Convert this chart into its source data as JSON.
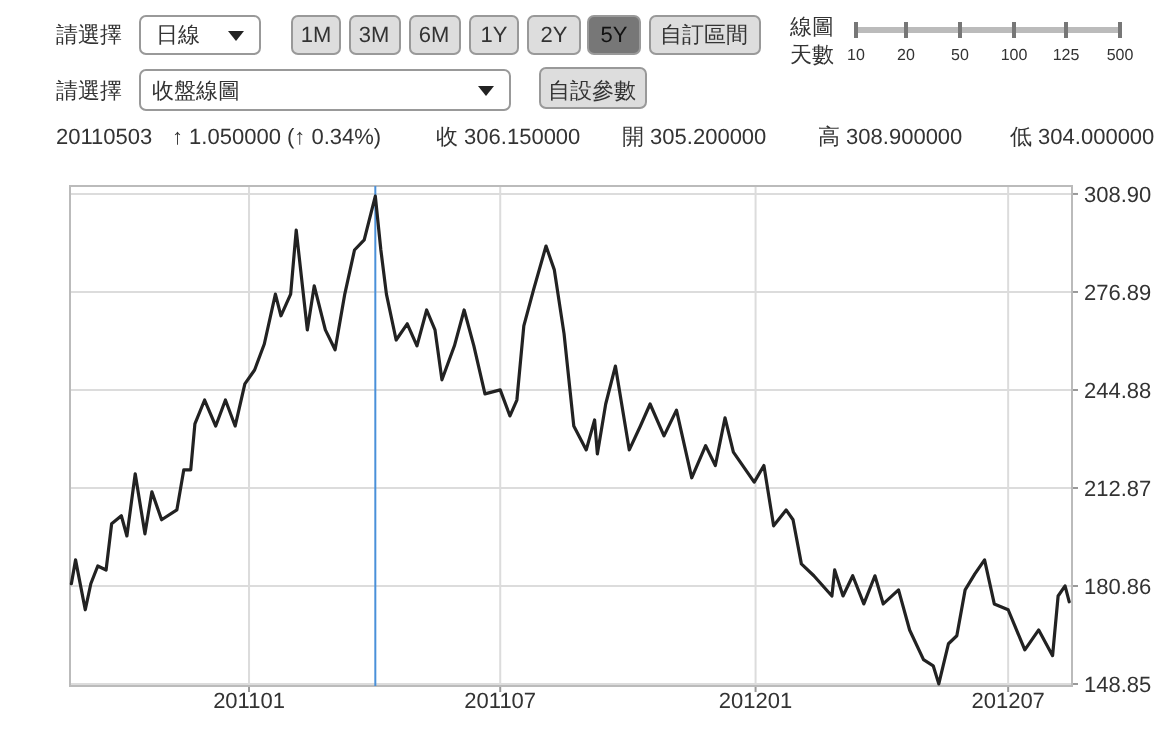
{
  "chart_data": {
    "type": "line",
    "annotations": [
      "請選擇",
      "日線",
      "1M",
      "3M",
      "6M",
      "1Y",
      "2Y",
      "5Y",
      "自訂區間",
      "線圖天數",
      "10",
      "20",
      "50",
      "100",
      "125",
      "500",
      "請選擇",
      "收盤線圖",
      "自設參數",
      "20110503",
      "↑ 1.050000 (↑ 0.34%)",
      "收 306.150000",
      "開 305.200000",
      "高 308.900000",
      "低 304.000000"
    ],
    "x": [
      "2010-08-26",
      "2010-08-29",
      "2010-09-05",
      "2010-09-09",
      "2010-09-14",
      "2010-09-20",
      "2010-09-24",
      "2010-10-01",
      "2010-10-05",
      "2010-10-11",
      "2010-10-18",
      "2010-10-23",
      "2010-10-30",
      "2010-11-10",
      "2010-11-15",
      "2010-11-20",
      "2010-11-23",
      "2010-11-30",
      "2010-12-08",
      "2010-12-15",
      "2010-12-22",
      "2010-12-29",
      "2011-01-05",
      "2011-01-12",
      "2011-01-20",
      "2011-01-24",
      "2011-01-31",
      "2011-02-04",
      "2011-02-12",
      "2011-02-17",
      "2011-02-25",
      "2011-03-04",
      "2011-03-11",
      "2011-03-18",
      "2011-03-25",
      "2011-04-02",
      "2011-04-06",
      "2011-04-10",
      "2011-04-17",
      "2011-04-25",
      "2011-05-02",
      "2011-05-09",
      "2011-05-15",
      "2011-05-20",
      "2011-05-29",
      "2011-06-05",
      "2011-06-12",
      "2011-06-20",
      "2011-07-01",
      "2011-07-08",
      "2011-07-13",
      "2011-07-18",
      "2011-07-25",
      "2011-08-03",
      "2011-08-09",
      "2011-08-16",
      "2011-08-23",
      "2011-09-01",
      "2011-09-07",
      "2011-09-09",
      "2011-09-15",
      "2011-09-22",
      "2011-10-02",
      "2011-10-10",
      "2011-10-17",
      "2011-10-27",
      "2011-11-05",
      "2011-11-16",
      "2011-11-26",
      "2011-12-03",
      "2011-12-10",
      "2011-12-16",
      "2011-12-31",
      "2012-01-07",
      "2012-01-14",
      "2012-01-23",
      "2012-01-28",
      "2012-02-03",
      "2012-02-12",
      "2012-02-25",
      "2012-02-27",
      "2012-03-04",
      "2012-03-11",
      "2012-03-19",
      "2012-03-27",
      "2012-04-02",
      "2012-04-13",
      "2012-04-21",
      "2012-05-01",
      "2012-05-08",
      "2012-05-12",
      "2012-05-19",
      "2012-05-25",
      "2012-05-31",
      "2012-06-07",
      "2012-06-14",
      "2012-06-21",
      "2012-07-01",
      "2012-07-13",
      "2012-07-23",
      "2012-08-02",
      "2012-08-06",
      "2012-08-11",
      "2012-08-14"
    ],
    "series": [
      {
        "color": "#222222",
        "values": [
          181.6,
          189.4,
          173.1,
          181.6,
          187.4,
          186.1,
          201.2,
          203.8,
          197.2,
          217.5,
          197.9,
          211.6,
          202.5,
          205.7,
          218.8,
          218.8,
          233.8,
          241.6,
          233.1,
          241.6,
          233.1,
          246.9,
          251.4,
          259.9,
          276.2,
          269.1,
          276.2,
          297.1,
          264.5,
          278.9,
          264.5,
          258.0,
          276.2,
          290.6,
          293.9,
          308.2,
          290.6,
          276.2,
          261.2,
          266.5,
          259.3,
          271.0,
          264.5,
          248.2,
          259.3,
          271.0,
          259.3,
          243.6,
          244.9,
          236.4,
          241.6,
          265.8,
          277.6,
          291.9,
          284.1,
          263.2,
          233.1,
          225.3,
          235.1,
          224.0,
          240.3,
          252.7,
          225.3,
          233.1,
          240.3,
          229.9,
          238.3,
          216.2,
          226.7,
          220.2,
          235.8,
          224.6,
          214.8,
          220.2,
          200.5,
          205.7,
          202.5,
          188.1,
          184.2,
          177.6,
          186.1,
          177.6,
          184.2,
          175.0,
          184.2,
          175.0,
          179.6,
          166.5,
          156.8,
          154.8,
          148.9,
          162.0,
          164.6,
          179.6,
          184.8,
          189.4,
          175.0,
          173.1,
          160.0,
          166.5,
          158.1,
          177.6,
          180.9,
          175.7
        ]
      }
    ],
    "xlim": [
      "2010-08-25",
      "2012-08-16"
    ],
    "xticks": [
      {
        "value": "2011-01-01",
        "label": "201101"
      },
      {
        "value": "2011-07-01",
        "label": "201107"
      },
      {
        "value": "2012-01-01",
        "label": "201201"
      },
      {
        "value": "2012-07-01",
        "label": "201207"
      }
    ],
    "ylim": [
      148.2,
      311.5
    ],
    "yticks": [
      148.85,
      180.86,
      212.87,
      244.88,
      276.89,
      {
        "value": 308.9,
        "label": "308.90"
      }
    ],
    "grid": true,
    "ref_lines": [
      {
        "axis": "x",
        "value": "2011-04-02",
        "color": "#4a90d9"
      }
    ]
  }
}
